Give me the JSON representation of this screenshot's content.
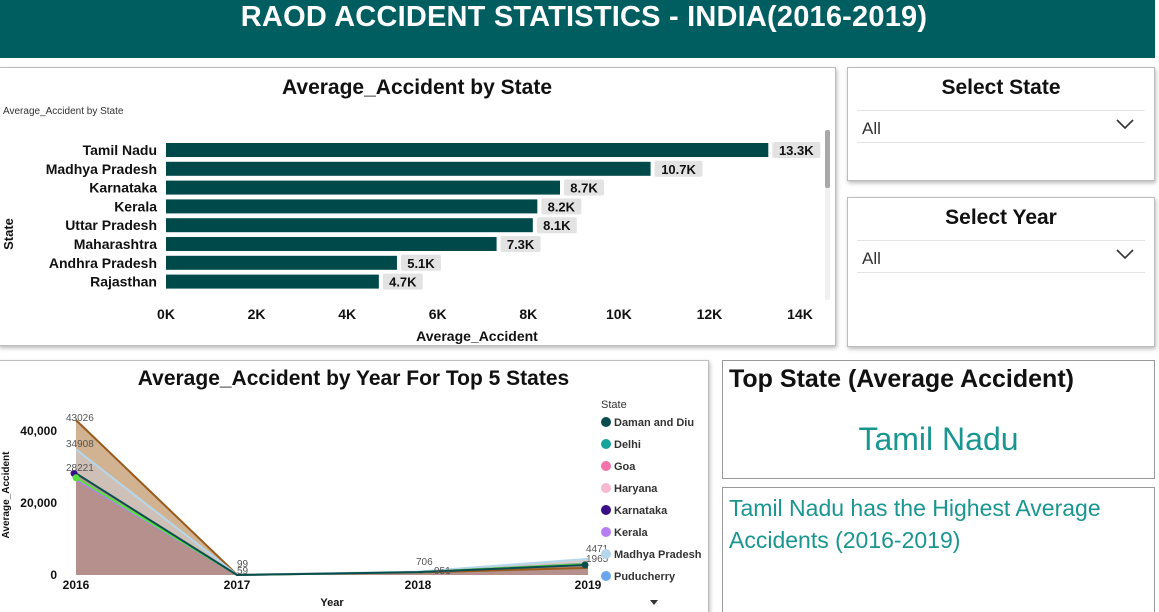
{
  "header": {
    "title": "RAOD ACCIDENT STATISTICS - INDIA(2016-2019)"
  },
  "bar_panel": {
    "title": "Average_Accident by State",
    "subtitle": "Average_Accident by State"
  },
  "state_filter": {
    "title": "Select State",
    "value": "All"
  },
  "year_filter": {
    "title": "Select Year",
    "value": "All"
  },
  "area_panel": {
    "title": "Average_Accident by Year For Top 5 States"
  },
  "top_state": {
    "title": "Top State (Average Accident)",
    "value": "Tamil Nadu"
  },
  "note": {
    "text": "Tamil Nadu has  the Highest Average Accidents (2016-2019)"
  },
  "icons": {
    "dropdown": "chevron-down-icon",
    "legend_more": "caret-down-icon"
  },
  "colors": {
    "header_bg": "#005e60",
    "bar": "#00494b",
    "accent_text": "#1a9690"
  },
  "chart_data": [
    {
      "type": "bar",
      "orientation": "horizontal",
      "title": "Average_Accident by State",
      "xlabel": "Average_Accident",
      "ylabel": "State",
      "categories": [
        "Tamil Nadu",
        "Madhya Pradesh",
        "Karnataka",
        "Kerala",
        "Uttar Pradesh",
        "Maharashtra",
        "Andhra Pradesh",
        "Rajasthan"
      ],
      "values": [
        13300,
        10700,
        8700,
        8200,
        8100,
        7300,
        5100,
        4700
      ],
      "data_labels": [
        "13.3K",
        "10.7K",
        "8.7K",
        "8.2K",
        "8.1K",
        "7.3K",
        "5.1K",
        "4.7K"
      ],
      "xlim": [
        0,
        14000
      ],
      "xticks": [
        0,
        2000,
        4000,
        6000,
        8000,
        10000,
        12000,
        14000
      ],
      "xtick_labels": [
        "0K",
        "2K",
        "4K",
        "6K",
        "8K",
        "10K",
        "12K",
        "14K"
      ]
    },
    {
      "type": "area",
      "title": "Average_Accident by Year For Top 5 States",
      "xlabel": "Year",
      "ylabel": "Average_Accident",
      "x": [
        "2016",
        "2017",
        "2018",
        "2019"
      ],
      "ylim": [
        0,
        45000
      ],
      "yticks": [
        0,
        20000,
        40000
      ],
      "ytick_labels": [
        "0",
        "20,000",
        "40,000"
      ],
      "legend_title": "State",
      "legend_position": "right",
      "legend": [
        {
          "name": "Daman and Diu",
          "color": "#0b4d4f"
        },
        {
          "name": "Delhi",
          "color": "#17a39a"
        },
        {
          "name": "Goa",
          "color": "#f272a9"
        },
        {
          "name": "Haryana",
          "color": "#f9b8d2"
        },
        {
          "name": "Karnataka",
          "color": "#3a0f86"
        },
        {
          "name": "Kerala",
          "color": "#b77ef2"
        },
        {
          "name": "Madhya Pradesh",
          "color": "#b5d7ec"
        },
        {
          "name": "Puducherry",
          "color": "#6aa6ee"
        }
      ],
      "series": [
        {
          "color": "#9a5a1c",
          "fill": "#c9a57e",
          "values": [
            43026,
            99,
            706,
            1965
          ]
        },
        {
          "color": "#b5d7ec",
          "fill": "#cfc2bd",
          "values": [
            34908,
            59,
            951,
            4471
          ]
        },
        {
          "color": "#b77ef2",
          "fill": "#b68f8c",
          "values": [
            26500,
            0,
            800,
            3200
          ]
        },
        {
          "color": "#55e040",
          "fill": "#b68f8c",
          "values": [
            27000,
            0,
            800,
            3100
          ]
        },
        {
          "color": "#0b4d4f",
          "fill": "#b68f8c",
          "values": [
            28221,
            0,
            800,
            2800
          ]
        }
      ],
      "data_labels": [
        {
          "x": "2016",
          "text": "43026"
        },
        {
          "x": "2016",
          "text": "34908"
        },
        {
          "x": "2016",
          "text": "28221"
        },
        {
          "x": "2017",
          "text": "99"
        },
        {
          "x": "2017",
          "text": "59"
        },
        {
          "x": "2018",
          "text": "706"
        },
        {
          "x": "2018",
          "text": "951"
        },
        {
          "x": "2019",
          "text": "4471"
        },
        {
          "x": "2019",
          "text": "1965"
        }
      ]
    }
  ]
}
